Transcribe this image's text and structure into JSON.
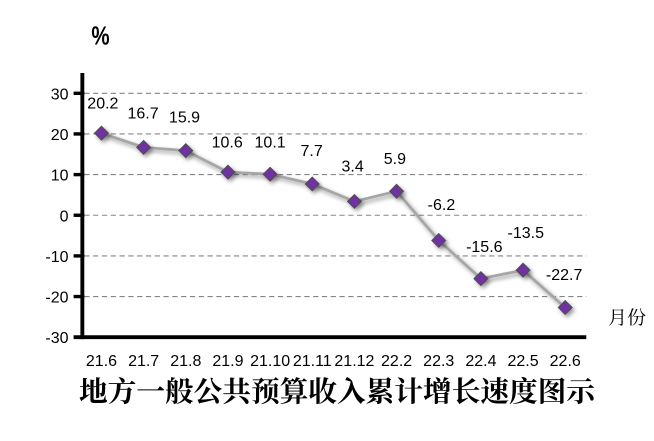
{
  "chart_data": {
    "type": "line",
    "title": "地方一般公共预算收入累计增长速度图示",
    "ylabel": "%",
    "xlabel": "月份",
    "categories": [
      "21.6",
      "21.7",
      "21.8",
      "21.9",
      "21.10",
      "21.11",
      "21.12",
      "22.2",
      "22.3",
      "22.4",
      "22.5",
      "22.6"
    ],
    "values": [
      20.2,
      16.7,
      15.9,
      10.6,
      10.1,
      7.7,
      3.4,
      5.9,
      -6.2,
      -15.6,
      -13.5,
      -22.7
    ],
    "data_labels": [
      "20.2",
      "16.7",
      "15.9",
      "10.6",
      "10.1",
      "7.7",
      "3.4",
      "5.9",
      "-6.2",
      "-15.6",
      "-13.5",
      "-22.7"
    ],
    "yticks": [
      30,
      20,
      10,
      0,
      -10,
      -20,
      -30
    ],
    "ylim": [
      -30,
      35
    ],
    "grid": "dashed-horizontal",
    "marker": "diamond",
    "colors": {
      "line": "#a6a6a6",
      "marker_fill": "#7030a0",
      "marker_border": "#4d4d4d",
      "gridline": "#858585",
      "axis": "#000000",
      "text": "#000000",
      "background": "#ffffff"
    }
  }
}
